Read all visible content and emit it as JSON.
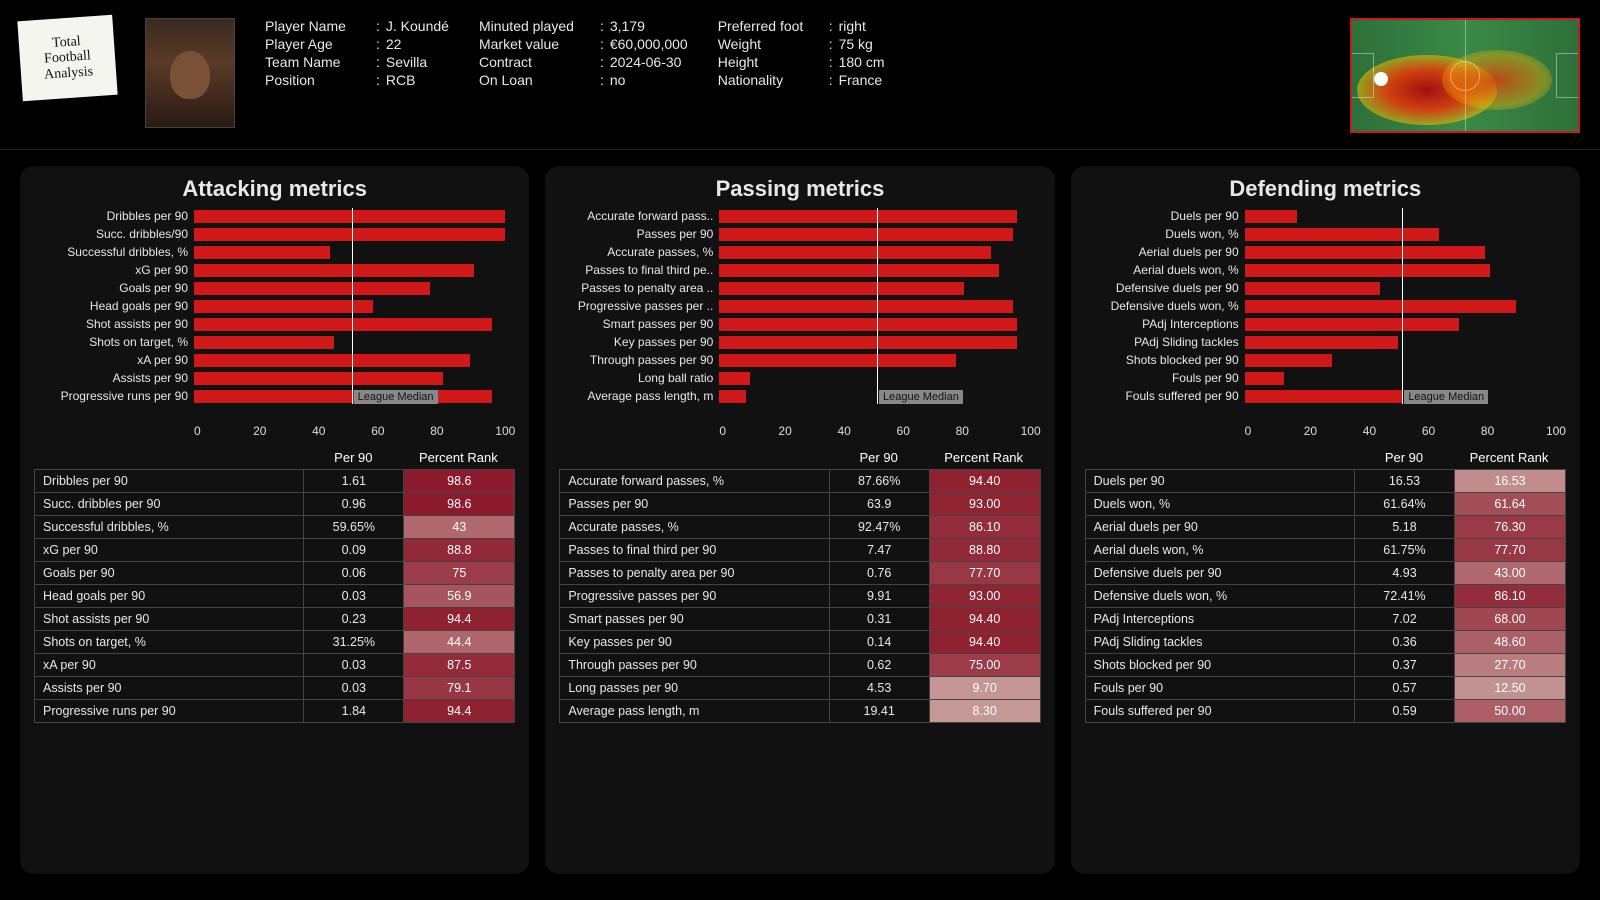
{
  "logo": {
    "l1": "Total",
    "l2": "Football",
    "l3": "Analysis"
  },
  "player": {
    "name_label": "Player Name",
    "name": "J. Koundé",
    "age_label": "Player Age",
    "age": "22",
    "team_label": "Team Name",
    "team": "Sevilla",
    "pos_label": "Position",
    "pos": "RCB",
    "min_label": "Minuted played",
    "min": "3,179",
    "mv_label": "Market value",
    "mv": "€60,000,000",
    "con_label": "Contract",
    "con": "2024-06-30",
    "loan_label": "On Loan",
    "loan": "no",
    "foot_label": "Preferred foot",
    "foot": "right",
    "wt_label": "Weight",
    "wt": "75 kg",
    "ht_label": "Height",
    "ht": "180 cm",
    "nat_label": "Nationality",
    "nat": "France"
  },
  "chart_style": {
    "bar_color": "#d01818",
    "panel_bg": "#111111",
    "xticks": [
      "0",
      "20",
      "40",
      "60",
      "80",
      "100"
    ],
    "median_pos": 50,
    "median_text": "League Median"
  },
  "rank_gradient": {
    "low": "#caa29f",
    "high": "#8b1a2b"
  },
  "panels": [
    {
      "title": "Attacking metrics",
      "bars": [
        {
          "label": "Dribbles per 90",
          "v": 98.6
        },
        {
          "label": "Succ. dribbles/90",
          "v": 98.6
        },
        {
          "label": "Successful dribbles, %",
          "v": 43
        },
        {
          "label": "xG per 90",
          "v": 88.8
        },
        {
          "label": "Goals per 90",
          "v": 75
        },
        {
          "label": "Head goals per 90",
          "v": 56.9
        },
        {
          "label": "Shot assists per 90",
          "v": 94.4
        },
        {
          "label": "Shots on target, %",
          "v": 44.4
        },
        {
          "label": "xA per 90",
          "v": 87.5
        },
        {
          "label": "Assists per 90",
          "v": 79.1
        },
        {
          "label": "Progressive runs per 90",
          "v": 94.4
        }
      ],
      "cols": {
        "c1": "",
        "c2": "Per 90",
        "c3": "Percent Rank"
      },
      "rows": [
        {
          "m": "Dribbles per 90",
          "p90": "1.61",
          "pr": "98.6",
          "prv": 98.6
        },
        {
          "m": "Succ. dribbles per 90",
          "p90": "0.96",
          "pr": "98.6",
          "prv": 98.6
        },
        {
          "m": "Successful dribbles, %",
          "p90": "59.65%",
          "pr": "43",
          "prv": 43
        },
        {
          "m": "xG per 90",
          "p90": "0.09",
          "pr": "88.8",
          "prv": 88.8
        },
        {
          "m": "Goals per 90",
          "p90": "0.06",
          "pr": "75",
          "prv": 75
        },
        {
          "m": "Head goals per 90",
          "p90": "0.03",
          "pr": "56.9",
          "prv": 56.9
        },
        {
          "m": "Shot assists per 90",
          "p90": "0.23",
          "pr": "94.4",
          "prv": 94.4
        },
        {
          "m": "Shots on target, %",
          "p90": "31.25%",
          "pr": "44.4",
          "prv": 44.4
        },
        {
          "m": "xA per 90",
          "p90": "0.03",
          "pr": "87.5",
          "prv": 87.5
        },
        {
          "m": "Assists per 90",
          "p90": "0.03",
          "pr": "79.1",
          "prv": 79.1
        },
        {
          "m": "Progressive runs per 90",
          "p90": "1.84",
          "pr": "94.4",
          "prv": 94.4
        }
      ]
    },
    {
      "title": "Passing metrics",
      "bars": [
        {
          "label": "Accurate forward pass..",
          "v": 94.4
        },
        {
          "label": "Passes per 90",
          "v": 93
        },
        {
          "label": "Accurate passes, %",
          "v": 86.1
        },
        {
          "label": "Passes to final third pe..",
          "v": 88.8
        },
        {
          "label": "Passes to penalty area ..",
          "v": 77.7
        },
        {
          "label": "Progressive passes per ..",
          "v": 93
        },
        {
          "label": "Smart passes per 90",
          "v": 94.4
        },
        {
          "label": "Key passes per 90",
          "v": 94.4
        },
        {
          "label": "Through passes per 90",
          "v": 75
        },
        {
          "label": "Long ball ratio",
          "v": 9.7
        },
        {
          "label": "Average pass length, m",
          "v": 8.3
        }
      ],
      "cols": {
        "c1": "",
        "c2": "Per 90",
        "c3": "Percent Rank"
      },
      "rows": [
        {
          "m": "Accurate forward passes, %",
          "p90": "87.66%",
          "pr": "94.40",
          "prv": 94.4
        },
        {
          "m": "Passes per 90",
          "p90": "63.9",
          "pr": "93.00",
          "prv": 93
        },
        {
          "m": "Accurate passes, %",
          "p90": "92.47%",
          "pr": "86.10",
          "prv": 86.1
        },
        {
          "m": "Passes to final third per 90",
          "p90": "7.47",
          "pr": "88.80",
          "prv": 88.8
        },
        {
          "m": "Passes to penalty area per 90",
          "p90": "0.76",
          "pr": "77.70",
          "prv": 77.7
        },
        {
          "m": "Progressive passes per 90",
          "p90": "9.91",
          "pr": "93.00",
          "prv": 93
        },
        {
          "m": "Smart passes per 90",
          "p90": "0.31",
          "pr": "94.40",
          "prv": 94.4
        },
        {
          "m": "Key passes per 90",
          "p90": "0.14",
          "pr": "94.40",
          "prv": 94.4
        },
        {
          "m": "Through passes per 90",
          "p90": "0.62",
          "pr": "75.00",
          "prv": 75
        },
        {
          "m": "Long passes per 90",
          "p90": "4.53",
          "pr": "9.70",
          "prv": 9.7
        },
        {
          "m": "Average pass length, m",
          "p90": "19.41",
          "pr": "8.30",
          "prv": 8.3
        }
      ]
    },
    {
      "title": "Defending metrics",
      "bars": [
        {
          "label": "Duels per 90",
          "v": 16.53
        },
        {
          "label": "Duels won, %",
          "v": 61.64
        },
        {
          "label": "Aerial duels per 90",
          "v": 76.3
        },
        {
          "label": "Aerial duels won, %",
          "v": 77.7
        },
        {
          "label": "Defensive duels per 90",
          "v": 43
        },
        {
          "label": "Defensive duels won, %",
          "v": 86.1
        },
        {
          "label": "PAdj Interceptions",
          "v": 68
        },
        {
          "label": "PAdj Sliding tackles",
          "v": 48.6
        },
        {
          "label": "Shots blocked per 90",
          "v": 27.7
        },
        {
          "label": "Fouls per 90",
          "v": 12.5
        },
        {
          "label": "Fouls suffered per 90",
          "v": 50
        }
      ],
      "cols": {
        "c1": "",
        "c2": "Per 90",
        "c3": "Percent Rank"
      },
      "rows": [
        {
          "m": "Duels per 90",
          "p90": "16.53",
          "pr": "16.53",
          "prv": 16.53
        },
        {
          "m": "Duels won, %",
          "p90": "61.64%",
          "pr": "61.64",
          "prv": 61.64
        },
        {
          "m": "Aerial duels per 90",
          "p90": "5.18",
          "pr": "76.30",
          "prv": 76.3
        },
        {
          "m": "Aerial duels won, %",
          "p90": "61.75%",
          "pr": "77.70",
          "prv": 77.7
        },
        {
          "m": "Defensive duels per 90",
          "p90": "4.93",
          "pr": "43.00",
          "prv": 43
        },
        {
          "m": "Defensive duels won, %",
          "p90": "72.41%",
          "pr": "86.10",
          "prv": 86.1
        },
        {
          "m": "PAdj Interceptions",
          "p90": "7.02",
          "pr": "68.00",
          "prv": 68
        },
        {
          "m": "PAdj Sliding tackles",
          "p90": "0.36",
          "pr": "48.60",
          "prv": 48.6
        },
        {
          "m": "Shots blocked per 90",
          "p90": "0.37",
          "pr": "27.70",
          "prv": 27.7
        },
        {
          "m": "Fouls per 90",
          "p90": "0.57",
          "pr": "12.50",
          "prv": 12.5
        },
        {
          "m": "Fouls suffered per 90",
          "p90": "0.59",
          "pr": "50.00",
          "prv": 50
        }
      ]
    }
  ]
}
